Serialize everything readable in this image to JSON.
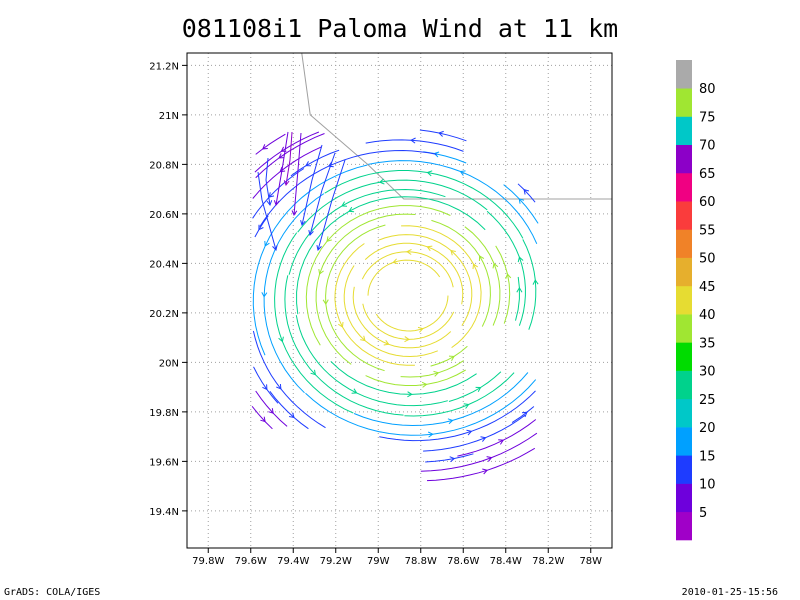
{
  "title": "081108i1 Paloma Wind at 11 km",
  "footer": {
    "left": "GrADS: COLA/IGES",
    "right": "2010-01-25-15:56"
  },
  "chart_data": {
    "type": "streamline",
    "title": "081108i1 Paloma Wind at 11 km",
    "xlabel": "",
    "ylabel": "",
    "xlim": [
      -79.9,
      -77.9
    ],
    "ylim": [
      19.25,
      21.25
    ],
    "x_ticks": [
      -79.8,
      -79.6,
      -79.4,
      -79.2,
      -79.0,
      -78.8,
      -78.6,
      -78.4,
      -78.2,
      -78.0
    ],
    "x_tick_labels": [
      "79.8W",
      "79.6W",
      "79.4W",
      "79.2W",
      "79W",
      "78.8W",
      "78.6W",
      "78.4W",
      "78.2W",
      "78W"
    ],
    "y_ticks": [
      19.4,
      19.6,
      19.8,
      20.0,
      20.2,
      20.4,
      20.6,
      20.8,
      21.0,
      21.2
    ],
    "y_tick_labels": [
      "19.4N",
      "19.6N",
      "19.8N",
      "20N",
      "20.2N",
      "20.4N",
      "20.6N",
      "20.8N",
      "21N",
      "21.2N"
    ],
    "grid": true,
    "vortex_center": {
      "lon": -78.86,
      "lat": 20.27
    },
    "coastline": [
      [
        -79.36,
        21.25
      ],
      [
        -79.32,
        21.0
      ],
      [
        -79.05,
        20.8
      ],
      [
        -78.88,
        20.66
      ],
      [
        -77.9,
        20.66
      ]
    ],
    "colorbar": {
      "labels": [
        "5",
        "10",
        "15",
        "20",
        "25",
        "30",
        "35",
        "40",
        "45",
        "50",
        "55",
        "60",
        "65",
        "70",
        "75",
        "80"
      ],
      "colors": [
        "#a000c8",
        "#6e00dc",
        "#1e3cff",
        "#00a0ff",
        "#00c8c8",
        "#00d28c",
        "#00dc00",
        "#a0e632",
        "#e6dc32",
        "#e6af2d",
        "#f08228",
        "#fa3c3c",
        "#f00082",
        "#8c00c8",
        "#00c8c8",
        "#a0e632",
        "#aaaaaa"
      ]
    }
  }
}
